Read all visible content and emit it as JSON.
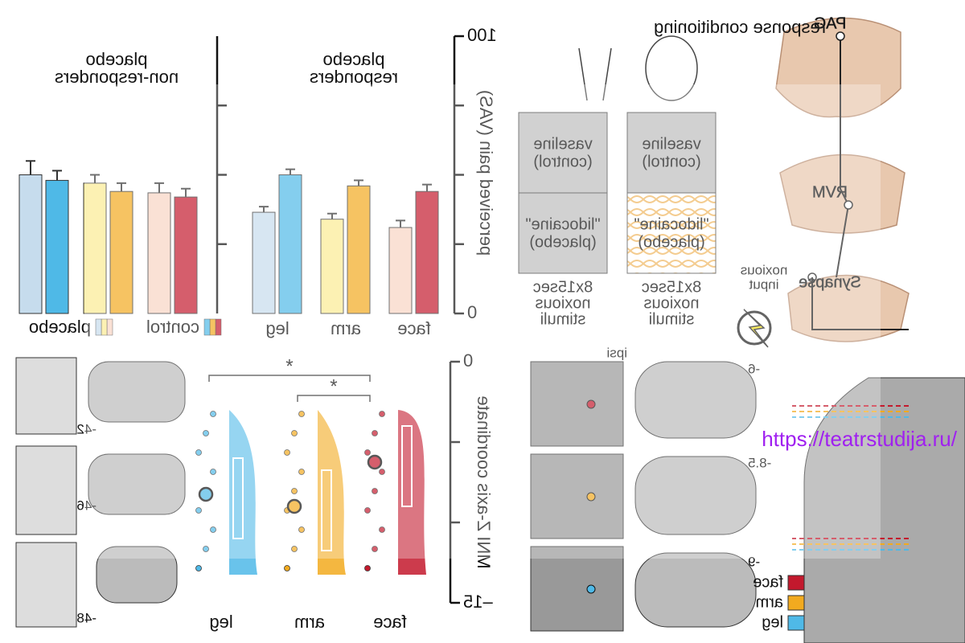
{
  "chart_data": [
    {
      "type": "bar",
      "title": [
        "placebo",
        "responders"
      ],
      "ylabel": "perceived pain (VAS)",
      "categories": [
        "face",
        "arm",
        "leg"
      ],
      "series": [
        {
          "name": "control",
          "colors": [
            "#c3192d",
            "#f2aa1f",
            "#4fb9e7"
          ],
          "values": [
            44,
            46,
            50
          ],
          "errors": [
            2.5,
            2,
            2
          ]
        },
        {
          "name": "placebo",
          "colors": [
            "#f8d5c3",
            "#fbeb93",
            "#c6dced"
          ],
          "values": [
            31,
            34,
            36.5
          ],
          "errors": [
            2.5,
            2,
            2
          ]
        }
      ],
      "ylim": [
        0,
        100
      ],
      "yticks": [
        0,
        100
      ],
      "yminor": [
        25,
        50,
        75
      ]
    },
    {
      "type": "bar",
      "title": [
        "placebo",
        "non-responders"
      ],
      "categories": [
        null,
        null,
        null
      ],
      "series": [
        {
          "name": "control",
          "colors": [
            "#c3192d",
            "#f2aa1f",
            "#4fb9e7"
          ],
          "values": [
            42,
            44,
            48
          ],
          "errors": [
            3,
            3,
            3.5
          ]
        },
        {
          "name": "placebo",
          "colors": [
            "#f8d5c3",
            "#fbeb93",
            "#c6dced"
          ],
          "values": [
            43.5,
            47,
            50
          ],
          "errors": [
            3.5,
            3,
            5
          ]
        }
      ],
      "ylim": [
        0,
        100
      ],
      "yminor": [
        25,
        50,
        75
      ],
      "legend": true
    },
    {
      "type": "raincloud",
      "ylabel": "MNI Z-axis coordinate",
      "categories": [
        "face",
        "arm",
        "leg"
      ],
      "values": [
        -6.25,
        -9,
        -8.25
      ],
      "colors": [
        "#c3192d",
        "#f2aa1f",
        "#4fb9e7"
      ],
      "ylim": [
        0,
        -15
      ],
      "yticks": [
        0,
        {
          "value": -15,
          "label": "–15"
        }
      ],
      "yminor": [
        -5,
        -10
      ],
      "annotations": [
        {
          "label": "*",
          "from": 0,
          "to": 2
        },
        {
          "label": "*",
          "from": 0,
          "to": 1
        }
      ]
    }
  ],
  "conditioning": {
    "title": "response conditioning",
    "columns": [
      {
        "top": [
          "vaseline",
          "(control)"
        ],
        "bottom": [
          "\"lidocaine\"",
          "(placebo)"
        ],
        "stimuli": [
          "8x15sec",
          "noxious",
          "stimuli"
        ]
      },
      {
        "top": [
          "vaseline",
          "(control)"
        ],
        "bottom": [
          "\"lidocaine\"",
          "(placebo)"
        ],
        "stimuli": [
          "8x15sec",
          "noxious",
          "stimuli"
        ]
      }
    ]
  },
  "pathway": {
    "labels": [
      "PAG",
      "RVM",
      "Synapse"
    ],
    "input": [
      "noxious",
      "input"
    ]
  },
  "slices": {
    "spinal": [
      "-42",
      "-46",
      "-48"
    ],
    "brainstem": [
      "-6",
      "-8.5",
      "-9"
    ],
    "side": "ipsi"
  },
  "legend": [
    {
      "name": "face",
      "color": "#c3192d"
    },
    {
      "name": "arm",
      "color": "#f2aa1f"
    },
    {
      "name": "leg",
      "color": "#4fb9e7"
    }
  ],
  "watermark": "https://teatrstudija.ru/"
}
